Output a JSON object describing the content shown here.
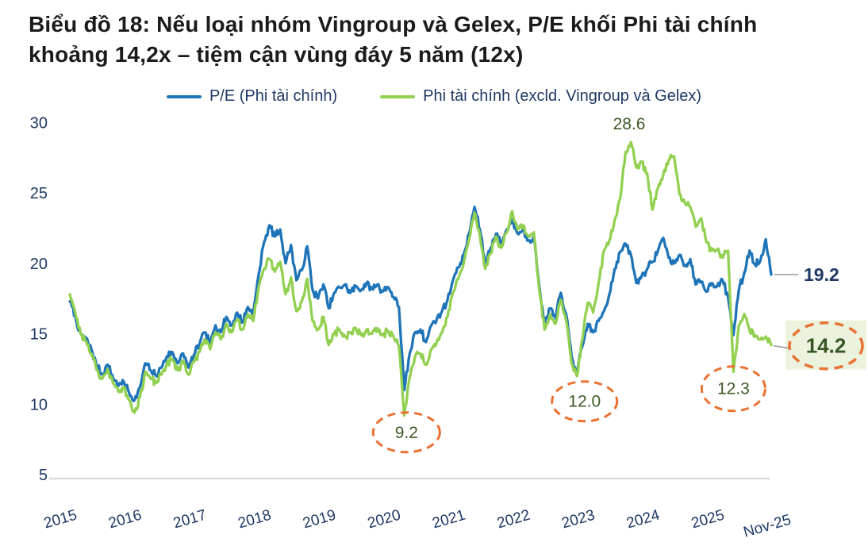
{
  "title_lines": [
    "Biểu đồ 18: Nếu loại nhóm Vingroup và Gelex, P/E khối Phi tài chính",
    "khoảng 14,2x – tiệm cận vùng đáy 5 năm (12x)"
  ],
  "colors": {
    "title_text": "#1b1b1b",
    "axis_text": "#1F3864",
    "axis_line": "#D9D9D9",
    "leader_gray": "#A0A0A0",
    "annotation_green": "#3C5A26",
    "annotation_green_bold": "#375623",
    "annotation_navy": "#1F3864",
    "ellipse_orange": "#E97132",
    "highlight_bg": "#EBF2DE",
    "background": "#FFFFFF"
  },
  "chart_data": {
    "type": "line",
    "title": "Biểu đồ 18: Nếu loại nhóm Vingroup và Gelex, P/E khối Phi tài chính khoảng 14,2x – tiệm cận vùng đáy 5 năm (12x)",
    "x_unit": "monthly",
    "x_range": [
      "2015-01",
      "2025-11"
    ],
    "x_tick_labels": [
      "2015",
      "2016",
      "2017",
      "2018",
      "2019",
      "2020",
      "2021",
      "2022",
      "2023",
      "2024",
      "2025",
      "Nov-25"
    ],
    "y_ticks": [
      5,
      10,
      15,
      20,
      25,
      30
    ],
    "ylim": [
      5,
      30
    ],
    "grid": false,
    "legend_position": "top",
    "series": [
      {
        "name": "P/E (Phi tài chính)",
        "color": "#1E74B8",
        "values": [
          17.3,
          16.2,
          15.0,
          14.7,
          13.9,
          12.7,
          12.1,
          12.8,
          11.9,
          11.3,
          11.6,
          10.8,
          10.3,
          11.2,
          12.9,
          12.4,
          12.0,
          12.6,
          13.4,
          13.7,
          12.9,
          13.6,
          12.6,
          13.5,
          14.2,
          15.1,
          14.3,
          15.6,
          15.1,
          16.2,
          15.6,
          16.5,
          15.8,
          16.9,
          16.4,
          19.2,
          21.5,
          22.7,
          21.9,
          22.4,
          20.0,
          21.3,
          18.8,
          19.5,
          21.2,
          18.1,
          17.5,
          18.5,
          16.8,
          17.9,
          18.3,
          18.5,
          17.9,
          18.4,
          18.1,
          18.6,
          18.2,
          18.5,
          18.0,
          18.3,
          17.6,
          16.9,
          11.0,
          13.6,
          15.1,
          15.3,
          14.4,
          15.6,
          16.0,
          16.6,
          17.4,
          18.8,
          19.7,
          20.6,
          22.1,
          24.0,
          22.4,
          20.0,
          21.1,
          22.1,
          21.4,
          22.4,
          23.1,
          22.1,
          22.4,
          21.6,
          21.9,
          18.4,
          15.7,
          16.8,
          16.1,
          17.9,
          16.4,
          13.4,
          12.2,
          14.1,
          15.7,
          15.1,
          15.9,
          16.6,
          17.8,
          19.6,
          20.8,
          21.4,
          20.6,
          18.6,
          19.1,
          19.6,
          20.1,
          20.9,
          21.8,
          20.4,
          20.0,
          20.6,
          19.8,
          20.3,
          18.5,
          18.7,
          18.0,
          18.6,
          18.4,
          18.8,
          17.6,
          14.9,
          18.1,
          19.3,
          20.9,
          19.9,
          20.2,
          21.7,
          19.2
        ]
      },
      {
        "name": "Phi tài chính (excld. Vingroup và Gelex)",
        "color": "#92D050",
        "values": [
          17.8,
          16.5,
          15.0,
          14.5,
          13.6,
          12.4,
          11.8,
          12.5,
          11.5,
          10.9,
          11.2,
          10.3,
          9.4,
          10.5,
          12.3,
          11.8,
          11.5,
          12.1,
          12.9,
          13.2,
          12.4,
          13.1,
          12.1,
          13.0,
          13.7,
          14.6,
          13.9,
          15.1,
          14.6,
          15.7,
          15.1,
          16.0,
          15.3,
          16.4,
          15.9,
          18.3,
          19.6,
          20.3,
          19.4,
          20.1,
          17.8,
          19.0,
          16.6,
          17.3,
          18.9,
          15.9,
          15.3,
          16.2,
          14.2,
          15.0,
          15.3,
          14.8,
          15.1,
          15.4,
          14.9,
          15.3,
          15.0,
          15.4,
          14.9,
          15.2,
          14.8,
          14.1,
          9.2,
          11.9,
          13.4,
          13.6,
          12.8,
          13.9,
          14.4,
          15.1,
          16.2,
          17.9,
          18.9,
          20.0,
          21.7,
          23.6,
          22.0,
          19.6,
          20.7,
          21.9,
          21.1,
          22.2,
          23.7,
          22.4,
          22.7,
          21.9,
          22.2,
          18.1,
          15.3,
          16.4,
          15.7,
          17.4,
          15.9,
          12.9,
          12.0,
          14.6,
          17.2,
          16.5,
          18.6,
          20.9,
          21.6,
          23.1,
          24.6,
          27.9,
          28.6,
          26.8,
          27.2,
          26.4,
          23.8,
          25.3,
          26.3,
          27.3,
          27.6,
          24.9,
          24.3,
          24.0,
          22.6,
          23.2,
          21.5,
          20.9,
          21.0,
          20.4,
          20.9,
          12.3,
          15.6,
          16.4,
          15.2,
          14.9,
          14.6,
          14.8,
          14.2
        ]
      }
    ],
    "annotations": [
      {
        "label": "28.6",
        "type": "text",
        "t": 8.64,
        "v": 29.9
      },
      {
        "label": "9.2",
        "type": "ellipse",
        "t": 5.2,
        "v": 8.0,
        "rx": 42,
        "ry": 25
      },
      {
        "label": "12.0",
        "type": "ellipse",
        "t": 7.95,
        "v": 10.2,
        "rx": 41,
        "ry": 25
      },
      {
        "label": "12.3",
        "type": "ellipse",
        "t": 10.25,
        "v": 11.1,
        "rx": 40,
        "ry": 28
      },
      {
        "label": "19.2",
        "type": "end-label"
      },
      {
        "label": "14.2",
        "type": "end-label-highlight"
      }
    ]
  }
}
